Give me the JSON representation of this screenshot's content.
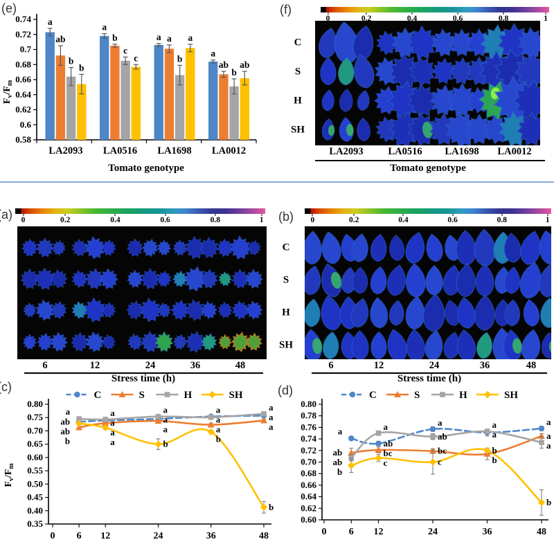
{
  "figure": {
    "divider_color": "#85abd4",
    "image_background": "#050505",
    "colorbar_range": {
      "min": "0",
      "max": "1"
    }
  },
  "chart_data": [
    {
      "id": "e",
      "tag": "(e)",
      "type": "bar",
      "xlabel": "Tomato genotype",
      "ylabel": "Fv/Fm",
      "ylim": [
        0.58,
        0.74
      ],
      "ystep": 0.02,
      "categories": [
        "LA2093",
        "LA0516",
        "LA1698",
        "LA0012"
      ],
      "series": [
        {
          "name": "C",
          "color": "#4E86C8",
          "values": [
            0.723,
            0.718,
            0.706,
            0.684
          ],
          "errors": [
            0.005,
            0.003,
            0.002,
            0.002
          ],
          "labels": [
            "a",
            "a",
            "a",
            "a"
          ]
        },
        {
          "name": "S",
          "color": "#ED7D31",
          "values": [
            0.692,
            0.705,
            0.701,
            0.667
          ],
          "errors": [
            0.013,
            0.002,
            0.005,
            0.004
          ],
          "labels": [
            "ab",
            "b",
            "a",
            "ab"
          ]
        },
        {
          "name": "H",
          "color": "#A5A5A5",
          "values": [
            0.664,
            0.685,
            0.666,
            0.651
          ],
          "errors": [
            0.012,
            0.005,
            0.013,
            0.01
          ],
          "labels": [
            "b",
            "c",
            "b",
            "b"
          ]
        },
        {
          "name": "SH",
          "color": "#FFC000",
          "values": [
            0.654,
            0.677,
            0.702,
            0.662
          ],
          "errors": [
            0.013,
            0.003,
            0.005,
            0.009
          ],
          "labels": [
            "b",
            "c",
            "a",
            "ab"
          ]
        }
      ]
    },
    {
      "id": "f",
      "tag": "(f)",
      "type": "heatmap",
      "xlabel": "Tomato genotype",
      "colorbar_ticks": [
        "0",
        "0.2",
        "0.4",
        "0.6",
        "0.8",
        "1"
      ],
      "rows": [
        "C",
        "S",
        "H",
        "SH"
      ],
      "categories": [
        "LA2093",
        "LA0516",
        "LA1698",
        "LA0012"
      ]
    },
    {
      "id": "a",
      "tag": "(a)",
      "type": "heatmap",
      "xlabel": "Stress time (h)",
      "colorbar_ticks": [
        "0",
        "0.2",
        "0.4",
        "0.6",
        "0.8",
        "1"
      ],
      "rows": [],
      "categories": [
        "6",
        "12",
        "24",
        "36",
        "48"
      ]
    },
    {
      "id": "b",
      "tag": "(b)",
      "type": "heatmap",
      "xlabel": "Stress time (h)",
      "colorbar_ticks": [
        "0",
        "0.2",
        "0.4",
        "0.6",
        "0.8",
        "1"
      ],
      "rows": [
        "C",
        "S",
        "H",
        "SH"
      ],
      "categories": [
        "6",
        "12",
        "24",
        "36",
        "48"
      ]
    },
    {
      "id": "c",
      "tag": "(c)",
      "type": "line",
      "ylabel": "Fv/Fm",
      "xlabel": "",
      "x": [
        6,
        12,
        24,
        36,
        48
      ],
      "xticks": [
        0,
        6,
        12,
        24,
        36,
        48
      ],
      "ylim": [
        0.35,
        0.8
      ],
      "ystep": 0.05,
      "series": [
        {
          "name": "C",
          "color": "#4E86C8",
          "dashed": true,
          "marker": "circle",
          "values": [
            0.734,
            0.739,
            0.745,
            0.754,
            0.757
          ],
          "errors": [
            0.004,
            0.004,
            0.004,
            0.004,
            0.005
          ],
          "labels": [
            "ab",
            "a",
            "a",
            "a",
            "a"
          ]
        },
        {
          "name": "S",
          "color": "#ED7D31",
          "dashed": false,
          "marker": "triangle",
          "values": [
            0.713,
            0.729,
            0.737,
            0.723,
            0.739
          ],
          "errors": [
            0.009,
            0.005,
            0.005,
            0.006,
            0.005
          ],
          "labels": [
            "b",
            "a",
            "a",
            "a",
            "a"
          ]
        },
        {
          "name": "H",
          "color": "#A5A5A5",
          "dashed": false,
          "marker": "square",
          "values": [
            0.745,
            0.743,
            0.754,
            0.751,
            0.764
          ],
          "errors": [
            0.005,
            0.004,
            0.006,
            0.008,
            0.007
          ],
          "labels": [
            "a",
            "a",
            "a",
            "a",
            "a"
          ]
        },
        {
          "name": "SH",
          "color": "#FFC000",
          "dashed": false,
          "marker": "diamond",
          "values": [
            0.728,
            0.712,
            0.65,
            0.696,
            0.413
          ],
          "errors": [
            0.006,
            0.006,
            0.02,
            0.006,
            0.022
          ],
          "labels": [
            "ab",
            "a",
            "b",
            "b",
            "b"
          ]
        }
      ]
    },
    {
      "id": "d",
      "tag": "(d)",
      "type": "line",
      "ylabel": "",
      "xlabel": "",
      "x": [
        6,
        12,
        24,
        36,
        48
      ],
      "xticks": [
        0,
        6,
        12,
        24,
        36,
        48
      ],
      "ylim": [
        0.6,
        0.8
      ],
      "ystep": 0.02,
      "series": [
        {
          "name": "C",
          "color": "#4E86C8",
          "dashed": true,
          "marker": "circle",
          "values": [
            0.741,
            0.732,
            0.757,
            0.751,
            0.758
          ],
          "errors": [
            0.003,
            0.004,
            0.004,
            0.006,
            0.004
          ],
          "labels": [
            "a",
            "ab",
            "a",
            "a",
            "a"
          ]
        },
        {
          "name": "S",
          "color": "#ED7D31",
          "dashed": false,
          "marker": "triangle",
          "values": [
            0.716,
            0.721,
            0.719,
            0.714,
            0.745
          ],
          "errors": [
            0.008,
            0.005,
            0.004,
            0.01,
            0.004
          ],
          "labels": [
            "ab",
            "bc",
            "bc",
            "b",
            "a"
          ]
        },
        {
          "name": "H",
          "color": "#A5A5A5",
          "dashed": false,
          "marker": "square",
          "values": [
            0.707,
            0.75,
            0.744,
            0.753,
            0.734
          ],
          "errors": [
            0.005,
            0.004,
            0.005,
            0.004,
            0.01
          ],
          "labels": [
            "ab",
            "a",
            "ab",
            "a",
            "a"
          ]
        },
        {
          "name": "SH",
          "color": "#FFC000",
          "dashed": false,
          "marker": "diamond",
          "values": [
            0.694,
            0.707,
            0.7,
            0.72,
            0.63
          ],
          "errors": [
            0.012,
            0.006,
            0.021,
            0.004,
            0.022
          ],
          "labels": [
            "b",
            "c",
            "c",
            "b",
            "b"
          ]
        }
      ]
    }
  ]
}
